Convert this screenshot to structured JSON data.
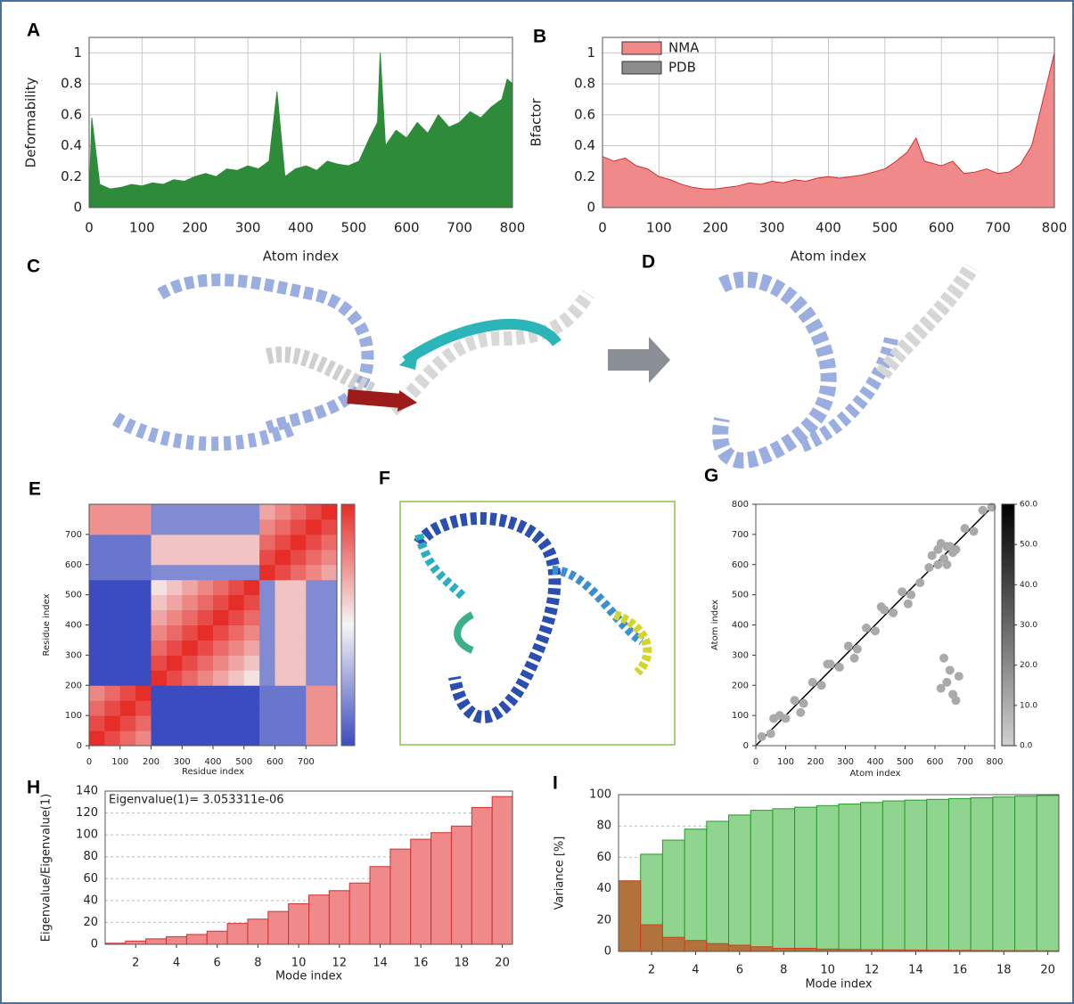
{
  "chart_data": [
    {
      "label": "A",
      "type": "area",
      "xlabel": "Atom index",
      "ylabel": "Deformability",
      "color": "#2e8b3a",
      "x": [
        0,
        5,
        20,
        40,
        60,
        80,
        100,
        120,
        140,
        160,
        180,
        200,
        220,
        240,
        260,
        280,
        300,
        320,
        340,
        355,
        370,
        390,
        410,
        430,
        450,
        470,
        490,
        510,
        530,
        545,
        550,
        560,
        580,
        600,
        620,
        640,
        660,
        680,
        700,
        720,
        740,
        760,
        780,
        790,
        800
      ],
      "values": [
        0.05,
        0.58,
        0.15,
        0.12,
        0.13,
        0.15,
        0.14,
        0.16,
        0.15,
        0.18,
        0.17,
        0.2,
        0.22,
        0.2,
        0.25,
        0.24,
        0.27,
        0.25,
        0.3,
        0.75,
        0.2,
        0.25,
        0.27,
        0.24,
        0.3,
        0.28,
        0.27,
        0.3,
        0.45,
        0.55,
        1.0,
        0.4,
        0.5,
        0.45,
        0.55,
        0.48,
        0.6,
        0.52,
        0.55,
        0.62,
        0.58,
        0.65,
        0.7,
        0.83,
        0.8
      ],
      "xlim": [
        0,
        800
      ],
      "ylim": [
        0,
        1.1
      ],
      "xticks": [
        0,
        100,
        200,
        300,
        400,
        500,
        600,
        700,
        800
      ],
      "yticks": [
        0,
        0.2,
        0.4,
        0.6,
        0.8,
        1
      ],
      "grid": true
    },
    {
      "label": "B",
      "type": "area",
      "xlabel": "Atom index",
      "ylabel": "Bfactor",
      "legend": "upper left",
      "x": [
        0,
        20,
        40,
        60,
        80,
        100,
        120,
        140,
        160,
        180,
        200,
        220,
        240,
        260,
        280,
        300,
        320,
        340,
        360,
        380,
        400,
        420,
        440,
        460,
        480,
        500,
        520,
        540,
        555,
        570,
        600,
        620,
        640,
        660,
        680,
        700,
        720,
        740,
        760,
        780,
        800
      ],
      "series": [
        {
          "name": "NMA",
          "color": "#f08a8a",
          "values": [
            0.33,
            0.3,
            0.32,
            0.27,
            0.25,
            0.2,
            0.18,
            0.15,
            0.13,
            0.12,
            0.12,
            0.13,
            0.14,
            0.16,
            0.15,
            0.17,
            0.16,
            0.18,
            0.17,
            0.19,
            0.2,
            0.19,
            0.2,
            0.21,
            0.23,
            0.25,
            0.3,
            0.36,
            0.45,
            0.3,
            0.27,
            0.3,
            0.22,
            0.23,
            0.25,
            0.22,
            0.23,
            0.28,
            0.4,
            0.7,
            1.0
          ]
        },
        {
          "name": "PDB",
          "color": "#8c8c8c",
          "values": [
            null,
            null,
            null,
            null,
            null,
            null,
            null,
            null,
            null,
            null,
            null,
            null,
            null,
            null,
            null,
            null,
            null,
            null,
            null,
            null,
            null,
            null,
            null,
            null,
            null,
            null,
            null,
            null,
            null,
            null,
            null,
            null,
            null,
            null,
            null,
            null,
            null,
            null,
            null,
            null,
            null
          ]
        }
      ],
      "xlim": [
        0,
        800
      ],
      "ylim": [
        0,
        1.1
      ],
      "xticks": [
        0,
        100,
        200,
        300,
        400,
        500,
        600,
        700,
        800
      ],
      "yticks": [
        0,
        0.2,
        0.4,
        0.6,
        0.8,
        1
      ],
      "grid": true
    },
    {
      "label": "E",
      "type": "heatmap",
      "xlabel": "Residue index",
      "ylabel": "Residue index",
      "xlim": [
        0,
        800
      ],
      "ylim": [
        0,
        800
      ],
      "xticks": [
        0,
        100,
        200,
        300,
        400,
        500,
        600,
        700
      ],
      "yticks": [
        0,
        100,
        200,
        300,
        400,
        500,
        600,
        700
      ],
      "matrix": [
        [
          1,
          0.88,
          0.76,
          0.64,
          -0.6,
          -0.6,
          -0.6,
          -0.6,
          -0.6,
          -0.6,
          -0.6,
          -0.4,
          -0.4,
          -0.4,
          0.6,
          0.6
        ],
        [
          0.88,
          1,
          0.88,
          0.76,
          -0.6,
          -0.6,
          -0.6,
          -0.6,
          -0.6,
          -0.6,
          -0.6,
          -0.4,
          -0.4,
          -0.4,
          0.6,
          0.6
        ],
        [
          0.76,
          0.88,
          1,
          0.88,
          -0.6,
          -0.6,
          -0.6,
          -0.6,
          -0.6,
          -0.6,
          -0.6,
          -0.4,
          -0.4,
          -0.4,
          0.6,
          0.6
        ],
        [
          0.64,
          0.76,
          0.88,
          1,
          -0.6,
          -0.6,
          -0.6,
          -0.6,
          -0.6,
          -0.6,
          -0.6,
          -0.4,
          -0.4,
          -0.4,
          0.6,
          0.6
        ],
        [
          -0.6,
          -0.6,
          -0.6,
          -0.6,
          1,
          0.88,
          0.76,
          0.64,
          0.52,
          0.4,
          0.28,
          -0.3,
          0.4,
          0.4,
          -0.3,
          -0.3
        ],
        [
          -0.6,
          -0.6,
          -0.6,
          -0.6,
          0.88,
          1,
          0.88,
          0.76,
          0.64,
          0.52,
          0.4,
          -0.3,
          0.4,
          0.4,
          -0.3,
          -0.3
        ],
        [
          -0.6,
          -0.6,
          -0.6,
          -0.6,
          0.76,
          0.88,
          1,
          0.88,
          0.76,
          0.64,
          0.52,
          -0.3,
          0.4,
          0.4,
          -0.3,
          -0.3
        ],
        [
          -0.6,
          -0.6,
          -0.6,
          -0.6,
          0.64,
          0.76,
          0.88,
          1,
          0.88,
          0.76,
          0.64,
          -0.3,
          0.4,
          0.4,
          -0.3,
          -0.3
        ],
        [
          -0.6,
          -0.6,
          -0.6,
          -0.6,
          0.52,
          0.64,
          0.76,
          0.88,
          1,
          0.88,
          0.76,
          -0.3,
          0.4,
          0.4,
          -0.3,
          -0.3
        ],
        [
          -0.6,
          -0.6,
          -0.6,
          -0.6,
          0.4,
          0.52,
          0.64,
          0.76,
          0.88,
          1,
          0.88,
          -0.3,
          0.4,
          0.4,
          -0.3,
          -0.3
        ],
        [
          -0.6,
          -0.6,
          -0.6,
          -0.6,
          0.28,
          0.4,
          0.52,
          0.64,
          0.76,
          0.88,
          1,
          -0.3,
          0.4,
          0.4,
          -0.3,
          -0.3
        ],
        [
          -0.4,
          -0.4,
          -0.4,
          -0.4,
          -0.3,
          -0.3,
          -0.3,
          -0.3,
          -0.3,
          -0.3,
          -0.3,
          1,
          0.88,
          0.76,
          0.64,
          0.52
        ],
        [
          -0.4,
          -0.4,
          -0.4,
          -0.4,
          0.4,
          0.4,
          0.4,
          0.4,
          0.4,
          0.4,
          0.4,
          0.88,
          1,
          0.88,
          0.76,
          0.64
        ],
        [
          -0.4,
          -0.4,
          -0.4,
          -0.4,
          0.4,
          0.4,
          0.4,
          0.4,
          0.4,
          0.4,
          0.4,
          0.76,
          0.88,
          1,
          0.88,
          0.76
        ],
        [
          0.6,
          0.6,
          0.6,
          0.6,
          -0.3,
          -0.3,
          -0.3,
          -0.3,
          -0.3,
          -0.3,
          -0.3,
          0.64,
          0.76,
          0.88,
          1,
          0.88
        ],
        [
          0.6,
          0.6,
          0.6,
          0.6,
          -0.3,
          -0.3,
          -0.3,
          -0.3,
          -0.3,
          -0.3,
          -0.3,
          0.52,
          0.64,
          0.76,
          0.88,
          1
        ]
      ]
    },
    {
      "label": "G",
      "type": "scatter",
      "xlabel": "Atom index",
      "ylabel": "Atom index",
      "color": "#aaaaaa",
      "x": [
        20,
        50,
        80,
        100,
        130,
        160,
        190,
        220,
        250,
        280,
        310,
        340,
        370,
        400,
        430,
        460,
        490,
        520,
        550,
        580,
        610,
        640,
        670,
        700,
        730,
        760,
        790,
        60,
        150,
        240,
        330,
        420,
        510,
        590,
        610,
        630,
        650,
        620,
        660,
        640,
        620,
        640,
        660,
        680,
        650,
        630,
        670
      ],
      "y": [
        30,
        40,
        100,
        90,
        150,
        140,
        210,
        200,
        270,
        260,
        330,
        320,
        390,
        380,
        450,
        440,
        510,
        500,
        540,
        590,
        600,
        660,
        650,
        720,
        710,
        780,
        790,
        90,
        110,
        270,
        290,
        460,
        470,
        630,
        650,
        620,
        660,
        670,
        640,
        600,
        190,
        210,
        170,
        230,
        250,
        290,
        150
      ],
      "xlim": [
        0,
        800
      ],
      "ylim": [
        0,
        800
      ],
      "xticks": [
        0,
        100,
        200,
        300,
        400,
        500,
        600,
        700,
        800
      ],
      "yticks": [
        0,
        100,
        200,
        300,
        400,
        500,
        600,
        700,
        800
      ],
      "colorbar_ticks": [
        {
          "value": 0,
          "label": "0.0"
        },
        {
          "value": 10,
          "label": "10.0"
        },
        {
          "value": 20,
          "label": "20.0"
        },
        {
          "value": 30,
          "label": "30.0"
        },
        {
          "value": 40,
          "label": "40.0"
        },
        {
          "value": 50,
          "label": "50.0"
        },
        {
          "value": 60,
          "label": "60.0"
        }
      ]
    },
    {
      "label": "H",
      "type": "bar",
      "xlabel": "Mode index",
      "ylabel": "Eigenvalue/Eigenvalue(1)",
      "annotation": "Eigenvalue(1)= 3.053311e-06",
      "color": "#f08a8a",
      "x": [
        1,
        2,
        3,
        4,
        5,
        6,
        7,
        8,
        9,
        10,
        11,
        12,
        13,
        14,
        15,
        16,
        17,
        18,
        19,
        20
      ],
      "values": [
        1,
        3,
        5,
        7,
        9,
        12,
        19,
        23,
        30,
        37,
        45,
        49,
        56,
        71,
        87,
        96,
        102,
        108,
        125,
        135
      ],
      "xlim": [
        0.5,
        20.5
      ],
      "ylim": [
        0,
        140
      ],
      "xticks": [
        2,
        4,
        6,
        8,
        10,
        12,
        14,
        16,
        18,
        20
      ],
      "yticks": [
        0,
        20,
        40,
        60,
        80,
        100,
        120,
        140
      ],
      "grid": "y"
    },
    {
      "label": "I",
      "type": "bar",
      "xlabel": "Mode index",
      "ylabel": "Variance [%]",
      "x": [
        1,
        2,
        3,
        4,
        5,
        6,
        7,
        8,
        9,
        10,
        11,
        12,
        13,
        14,
        15,
        16,
        17,
        18,
        19,
        20
      ],
      "series": [
        {
          "color": "#8fd48f",
          "values": [
            45,
            62,
            71,
            78,
            83,
            87,
            90,
            91,
            92,
            93,
            94,
            95,
            96,
            96.5,
            97,
            97.5,
            98,
            98.5,
            99,
            99.5
          ]
        },
        {
          "color": "#b8602e",
          "values": [
            45,
            17,
            9,
            7,
            5,
            4,
            3,
            2,
            2,
            1.5,
            1.3,
            1.1,
            1,
            0.9,
            0.8,
            0.7,
            0.6,
            0.5,
            0.5,
            0.4
          ]
        }
      ],
      "xlim": [
        0.5,
        20.5
      ],
      "ylim": [
        0,
        100
      ],
      "xticks": [
        2,
        4,
        6,
        8,
        10,
        12,
        14,
        16,
        18,
        20
      ],
      "yticks": [
        0,
        20,
        40,
        60,
        80,
        100
      ],
      "grid": "y"
    }
  ],
  "images": [
    {
      "label": "C"
    },
    {
      "label": "D"
    },
    {
      "label": "F"
    }
  ]
}
